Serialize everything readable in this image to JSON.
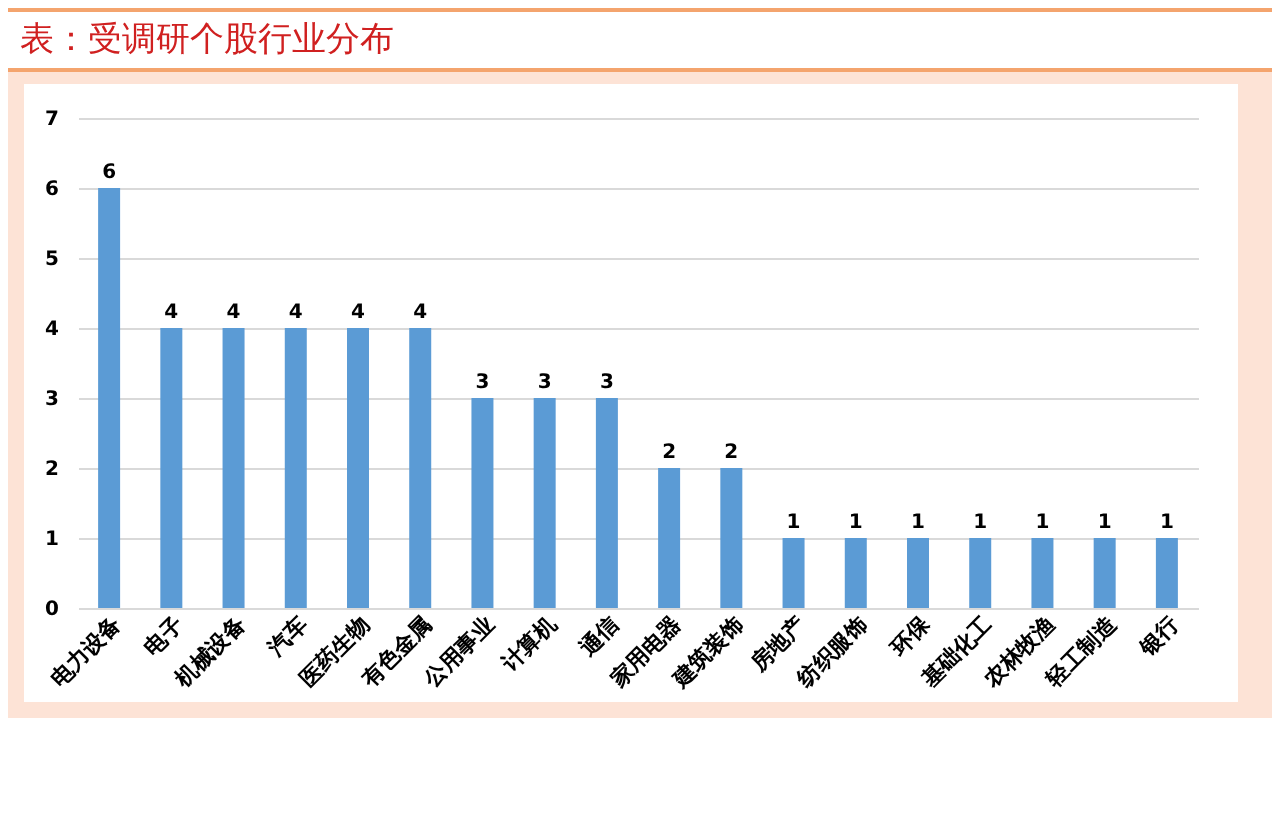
{
  "chart_data": {
    "type": "bar",
    "title": "表：受调研个股行业分布",
    "categories": [
      "电力设备",
      "电子",
      "机械设备",
      "汽车",
      "医药生物",
      "有色金属",
      "公用事业",
      "计算机",
      "通信",
      "家用电器",
      "建筑装饰",
      "房地产",
      "纺织服饰",
      "环保",
      "基础化工",
      "农林牧渔",
      "轻工制造",
      "银行"
    ],
    "values": [
      6,
      4,
      4,
      4,
      4,
      4,
      3,
      3,
      3,
      2,
      2,
      1,
      1,
      1,
      1,
      1,
      1,
      1
    ],
    "color": "#5b9bd5",
    "ylim": [
      0,
      7
    ],
    "yticks": [
      0,
      1,
      2,
      3,
      4,
      5,
      6,
      7
    ],
    "grid": "y",
    "data_labels": true
  }
}
